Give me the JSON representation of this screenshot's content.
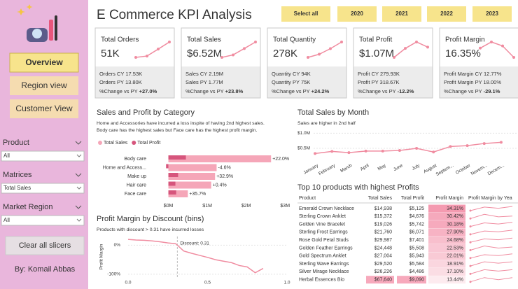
{
  "sidebar": {
    "nav": [
      "Overview",
      "Region view",
      "Customer View"
    ],
    "filters": [
      {
        "label": "Product",
        "value": "All"
      },
      {
        "label": "Matrices",
        "value": "Total Sales"
      },
      {
        "label": "Market Region",
        "value": "All"
      }
    ],
    "clear": "Clear all slicers",
    "author": "By: Komail Abbas"
  },
  "header": {
    "title": "E Commerce KPI Analysis",
    "years": [
      "Select all",
      "2020",
      "2021",
      "2022",
      "2023"
    ]
  },
  "kpis": [
    {
      "title": "Total Orders",
      "value": "51K",
      "cy": "Orders CY 17.53K",
      "py": "Orders PY 13.80K",
      "change_label": "%Change vs PY",
      "change": "+27.0%",
      "trend": [
        9.5,
        10.2,
        13.8,
        17.5
      ]
    },
    {
      "title": "Total Sales",
      "value": "$6.52M",
      "cy": "Sales CY 2.19M",
      "py": "Sales PY 1.77M",
      "change_label": "%Change vs PY",
      "change": "+23.8%",
      "trend": [
        1.2,
        1.36,
        1.77,
        2.19
      ]
    },
    {
      "title": "Total Quantity",
      "value": "278K",
      "cy": "Quantity CY 94K",
      "py": "Quantity PY 75K",
      "change_label": "%Change vs PY",
      "change": "+24.2%",
      "trend": [
        50,
        59,
        75,
        94
      ]
    },
    {
      "title": "Total Profit",
      "value": "$1.07M",
      "cy": "Profit CY 279.93K",
      "py": "Profit PY 318.67K",
      "change_label": "%Change vs PY",
      "change": "-12.2%",
      "trend": [
        0.2,
        0.27,
        0.32,
        0.28
      ]
    },
    {
      "title": "Profit Margin",
      "value": "16.35%",
      "cy": "Profit Margin CY 12.77%",
      "py": "Profit Margin PY 18.00%",
      "change_label": "%Change vs PY",
      "change": "-29.1%",
      "trend": [
        17,
        19.8,
        18,
        12.8
      ]
    }
  ],
  "chart_data": [
    {
      "type": "hbar",
      "title": "Sales and Profit by Category",
      "annotation": [
        "Home and Accessories have incurred a loss inspite of having 2nd highest sales.",
        "Body care has the highest sales but Face care has the highest profit margin."
      ],
      "categories": [
        "Body care",
        "Home and Access...",
        "Make up",
        "Hair care",
        "Face care"
      ],
      "series": [
        {
          "name": "Total Sales",
          "color": "#f5a6b8",
          "values": [
            2.64,
            1.24,
            1.2,
            1.1,
            0.5
          ]
        },
        {
          "name": "Total Profit",
          "color": "#d6557c",
          "values": [
            0.45,
            -0.06,
            0.25,
            0.18,
            0.2
          ]
        }
      ],
      "change_labels": [
        "+22.0%",
        "-4.6%",
        "+32.9%",
        "+0.4%",
        "+35.7%"
      ],
      "xlim": [
        -0.1,
        3.05
      ],
      "xticks": [
        {
          "value": 0,
          "label": "$0M"
        },
        {
          "value": 1,
          "label": "$1M"
        },
        {
          "value": 2,
          "label": "$2M"
        },
        {
          "value": 3,
          "label": "$3M"
        }
      ]
    },
    {
      "type": "line",
      "title": "Total Sales by Month",
      "subtitle": "Sales are higher in 2nd half",
      "categories": [
        "January",
        "February",
        "March",
        "April",
        "May",
        "June",
        "July",
        "August",
        "Septem...",
        "October",
        "Novem...",
        "Decem..."
      ],
      "values": [
        0.33,
        0.4,
        0.36,
        0.41,
        0.41,
        0.43,
        0.5,
        0.38,
        0.56,
        0.59,
        0.66,
        0.7
      ],
      "color": "#f08ca0",
      "ylim": [
        0.2,
        1.1
      ],
      "yticks": [
        {
          "value": 0.5,
          "label": "$0.5M"
        },
        {
          "value": 1,
          "label": "$1.0M"
        }
      ]
    },
    {
      "type": "xyline",
      "title": "Profit Margin by Discount (bins)",
      "subtitle": "Products with discount > 0.31 have incurred losses",
      "ylabel": "Profit Margin",
      "x": [
        0,
        0.05,
        0.1,
        0.15,
        0.2,
        0.25,
        0.3,
        0.35,
        0.4,
        0.45,
        0.5,
        0.55,
        0.6,
        0.65,
        0.7,
        0.75,
        0.8,
        0.85
      ],
      "values": [
        20,
        18,
        17,
        15,
        12,
        8,
        5,
        -20,
        -28,
        -35,
        -42,
        -50,
        -55,
        -60,
        -70,
        -75,
        -95,
        -80
      ],
      "color": "#f08ca0",
      "reference": {
        "value": 0.31,
        "label": "Discount: 0.31"
      },
      "xlim": [
        0,
        1
      ],
      "xticks": [
        {
          "value": 0,
          "label": "0.0"
        },
        {
          "value": 0.5,
          "label": "0.5"
        },
        {
          "value": 1,
          "label": "1.0"
        }
      ],
      "ylim": [
        -110,
        30
      ],
      "yticks": [
        {
          "value": 0,
          "label": "0%"
        },
        {
          "value": -100,
          "label": "-100%"
        }
      ]
    }
  ],
  "table": {
    "title": "Top 10 products with highest Profits",
    "columns": [
      "Product",
      "Total Sales",
      "Total Profit",
      "Profit Margin",
      "Profit Margin by Yea"
    ],
    "rows": [
      [
        "Emerald Crown Necklace",
        "$14,938",
        "$5,125",
        "34.31%"
      ],
      [
        "Sterling Crown Anklet",
        "$15,372",
        "$4,676",
        "30.42%"
      ],
      [
        "Golden Vine Bracelet",
        "$19,026",
        "$5,742",
        "30.18%"
      ],
      [
        "Sterling Frost Earrings",
        "$21,760",
        "$6,071",
        "27.90%"
      ],
      [
        "Rose Gold Petal Studs",
        "$29,987",
        "$7,401",
        "24.68%"
      ],
      [
        "Golden Feather Earrings",
        "$24,448",
        "$5,508",
        "22.53%"
      ],
      [
        "Gold Spectrum Anklet",
        "$27,004",
        "$5,943",
        "22.01%"
      ],
      [
        "Sterling Wave Earrings",
        "$29,520",
        "$5,584",
        "18.91%"
      ],
      [
        "Silver Mirage Necklace",
        "$26,226",
        "$4,486",
        "17.10%"
      ],
      [
        "Herbal Essences Bio",
        "$67,640",
        "$9,090",
        "13.44%"
      ]
    ],
    "trends": [
      [
        30,
        36,
        34,
        37
      ],
      [
        28,
        33,
        30,
        31
      ],
      [
        26,
        32,
        30,
        33
      ],
      [
        25,
        29,
        28,
        30
      ],
      [
        22,
        26,
        25,
        27
      ],
      [
        20,
        24,
        22,
        23
      ],
      [
        19,
        23,
        22,
        24
      ],
      [
        17,
        20,
        19,
        20
      ],
      [
        15,
        18,
        17,
        18
      ],
      [
        12,
        14,
        13,
        14
      ]
    ]
  }
}
